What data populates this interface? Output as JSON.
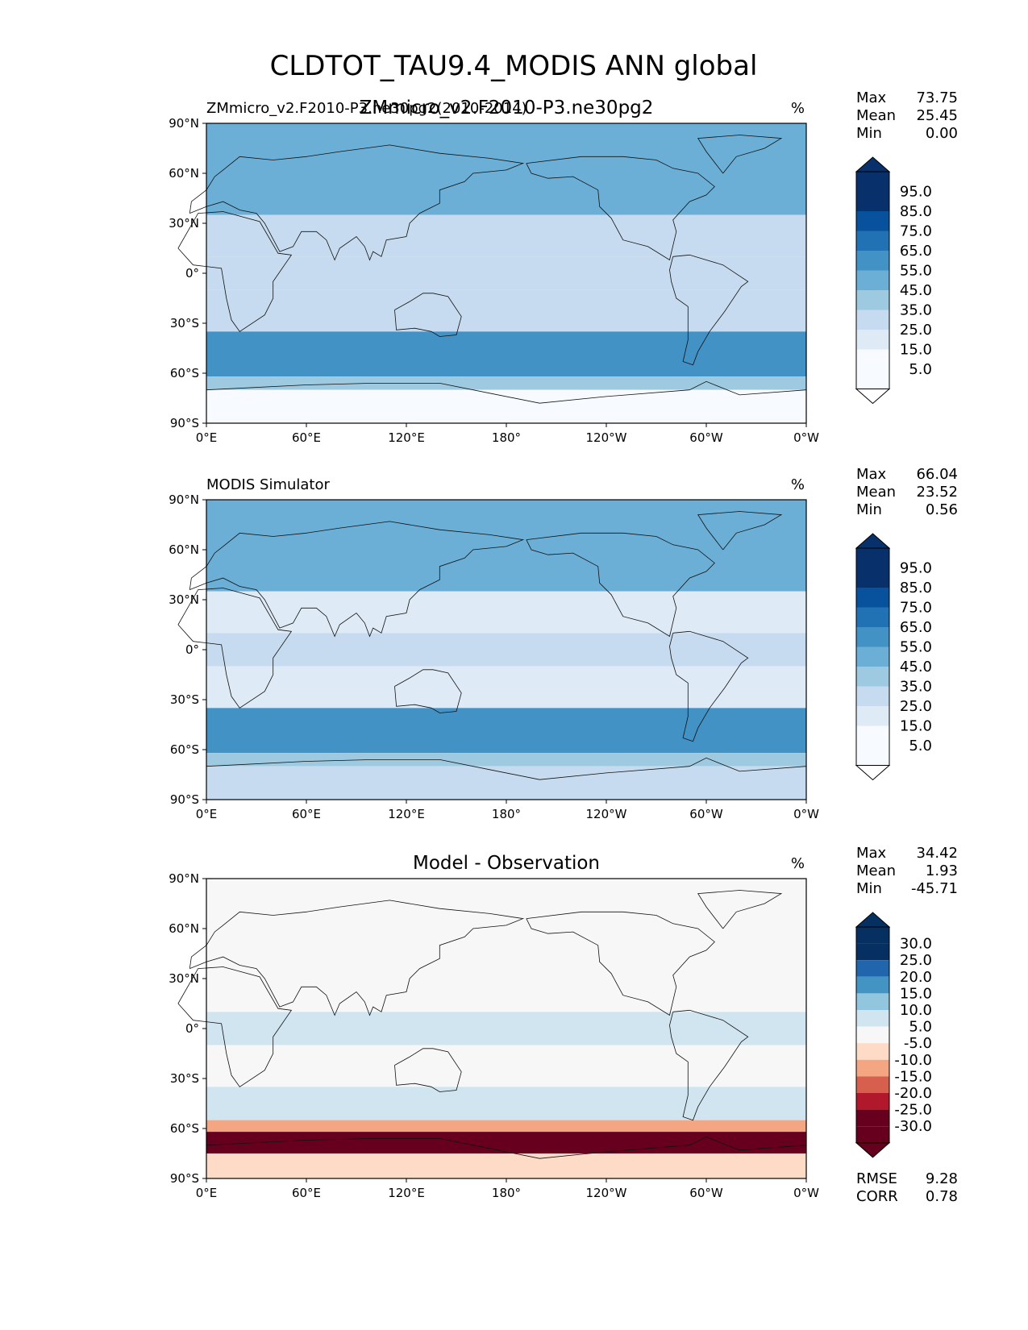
{
  "figure": {
    "title": "CLDTOT_TAU9.4_MODIS ANN global",
    "units_label": "%"
  },
  "chart_data": [
    {
      "type": "heatmap",
      "panel": "test",
      "title": "ZMmicro_v2.F2010-P3.ne30pg2",
      "left_label": "ZMmicro_v2.F2010-P3.ne30pg2(2010-2014)",
      "units": "%",
      "xlabel": "",
      "ylabel": "",
      "x_ticks": [
        "0°E",
        "60°E",
        "120°E",
        "180°",
        "120°W",
        "60°W",
        "0°W"
      ],
      "y_ticks": [
        "90°N",
        "60°N",
        "30°N",
        "0°",
        "30°S",
        "60°S",
        "90°S"
      ],
      "xlim": [
        0,
        360
      ],
      "ylim": [
        -90,
        90
      ],
      "stats": {
        "Max": "73.75",
        "Mean": "25.45",
        "Min": "0.00"
      },
      "colorbar": {
        "levels": [
          "95.0",
          "85.0",
          "75.0",
          "65.0",
          "55.0",
          "45.0",
          "35.0",
          "25.0",
          "15.0",
          "5.0"
        ],
        "extend": "both"
      },
      "zonal_bands": [
        {
          "lat": [
            60,
            90
          ],
          "value": 42
        },
        {
          "lat": [
            35,
            60
          ],
          "value": 45
        },
        {
          "lat": [
            10,
            35
          ],
          "value": 20
        },
        {
          "lat": [
            -10,
            10
          ],
          "value": 28
        },
        {
          "lat": [
            -35,
            -10
          ],
          "value": 20
        },
        {
          "lat": [
            -62,
            -35
          ],
          "value": 55
        },
        {
          "lat": [
            -70,
            -62
          ],
          "value": 30
        },
        {
          "lat": [
            -90,
            -70
          ],
          "value": 3
        }
      ]
    },
    {
      "type": "heatmap",
      "panel": "reference",
      "title": "",
      "left_label": "MODIS Simulator",
      "units": "%",
      "xlabel": "",
      "ylabel": "",
      "x_ticks": [
        "0°E",
        "60°E",
        "120°E",
        "180°",
        "120°W",
        "60°W",
        "0°W"
      ],
      "y_ticks": [
        "90°N",
        "60°N",
        "30°N",
        "0°",
        "30°S",
        "60°S",
        "90°S"
      ],
      "xlim": [
        0,
        360
      ],
      "ylim": [
        -90,
        90
      ],
      "stats": {
        "Max": "66.04",
        "Mean": "23.52",
        "Min": "0.56"
      },
      "colorbar": {
        "levels": [
          "95.0",
          "85.0",
          "75.0",
          "65.0",
          "55.0",
          "45.0",
          "35.0",
          "25.0",
          "15.0",
          "5.0"
        ],
        "extend": "both"
      },
      "zonal_bands": [
        {
          "lat": [
            60,
            90
          ],
          "value": 40
        },
        {
          "lat": [
            35,
            60
          ],
          "value": 42
        },
        {
          "lat": [
            10,
            35
          ],
          "value": 18
        },
        {
          "lat": [
            -10,
            10
          ],
          "value": 25
        },
        {
          "lat": [
            -35,
            -10
          ],
          "value": 18
        },
        {
          "lat": [
            -62,
            -35
          ],
          "value": 50
        },
        {
          "lat": [
            -70,
            -62
          ],
          "value": 38
        },
        {
          "lat": [
            -90,
            -70
          ],
          "value": 22
        }
      ]
    },
    {
      "type": "heatmap",
      "panel": "difference",
      "title": "Model - Observation",
      "left_label": "",
      "units": "%",
      "xlabel": "",
      "ylabel": "",
      "x_ticks": [
        "0°E",
        "60°E",
        "120°E",
        "180°",
        "120°W",
        "60°W",
        "0°W"
      ],
      "y_ticks": [
        "90°N",
        "60°N",
        "30°N",
        "0°",
        "30°S",
        "60°S",
        "90°S"
      ],
      "xlim": [
        0,
        360
      ],
      "ylim": [
        -90,
        90
      ],
      "stats": {
        "Max": "34.42",
        "Mean": "1.93",
        "Min": "-45.71"
      },
      "colorbar": {
        "levels": [
          "30.0",
          "25.0",
          "20.0",
          "15.0",
          "10.0",
          "5.0",
          "-5.0",
          "-10.0",
          "-15.0",
          "-20.0",
          "-25.0",
          "-30.0"
        ],
        "extend": "both"
      },
      "extra_stats": {
        "RMSE": "9.28",
        "CORR": "0.78"
      },
      "zonal_bands": [
        {
          "lat": [
            60,
            90
          ],
          "value": -2
        },
        {
          "lat": [
            35,
            60
          ],
          "value": 2
        },
        {
          "lat": [
            10,
            35
          ],
          "value": 4
        },
        {
          "lat": [
            -10,
            10
          ],
          "value": 6
        },
        {
          "lat": [
            -35,
            -10
          ],
          "value": 3
        },
        {
          "lat": [
            -55,
            -35
          ],
          "value": 8
        },
        {
          "lat": [
            -62,
            -55
          ],
          "value": -12
        },
        {
          "lat": [
            -75,
            -62
          ],
          "value": -28
        },
        {
          "lat": [
            -90,
            -75
          ],
          "value": -8
        }
      ]
    }
  ],
  "colors": {
    "seq": [
      "#f7fbff",
      "#deebf7",
      "#c6dbef",
      "#9ecae1",
      "#6baed6",
      "#4292c6",
      "#2171b5",
      "#08519c",
      "#08306b"
    ],
    "div_pos": [
      "#f7f7f7",
      "#d1e5f0",
      "#92c5de",
      "#4393c3",
      "#2166ac",
      "#053061"
    ],
    "div_neg": [
      "#f7f7f7",
      "#fddbc7",
      "#f4a582",
      "#d6604d",
      "#b2182b",
      "#67001f"
    ]
  }
}
